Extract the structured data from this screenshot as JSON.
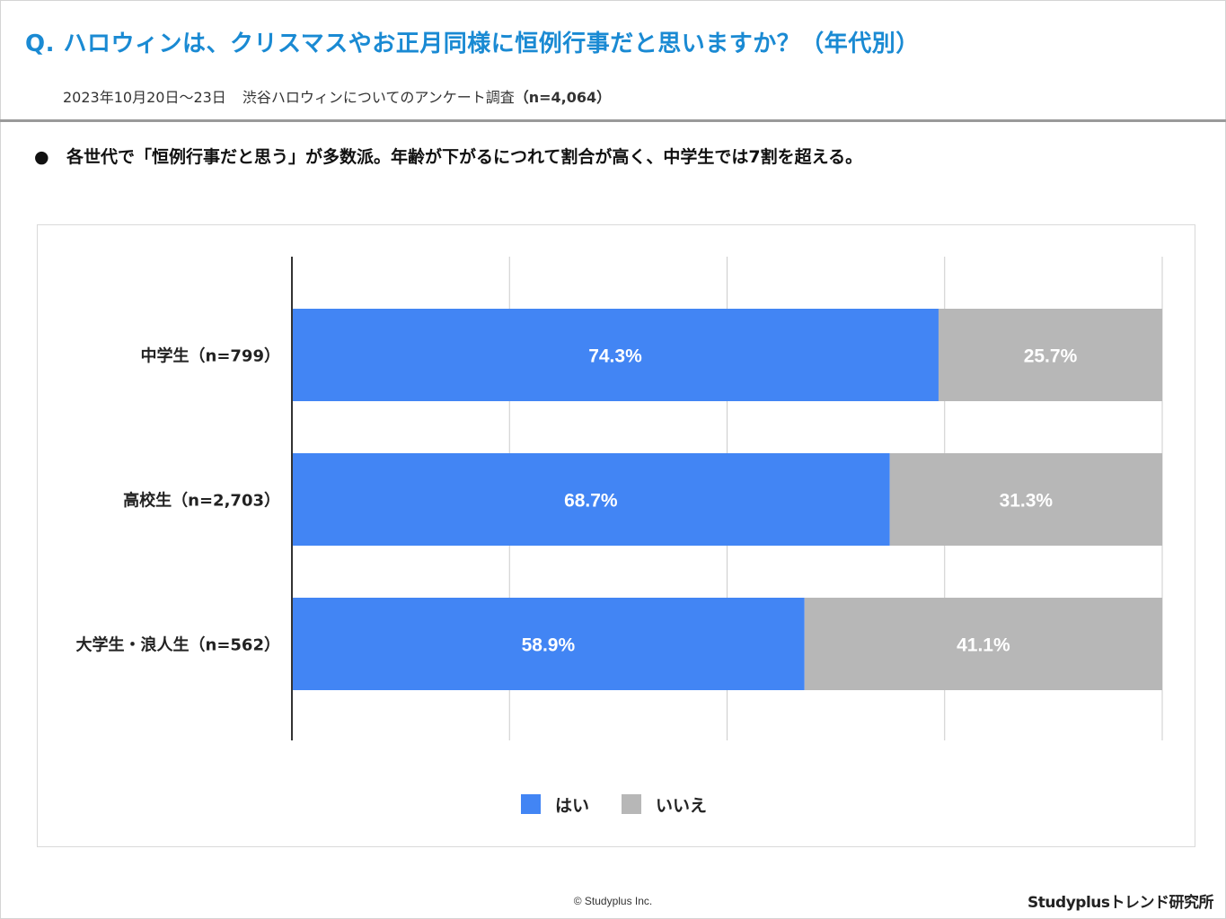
{
  "header": {
    "question": "Q. ハロウィンは、クリスマスやお正月同様に恒例行事だと思いますか？（年代別）",
    "date": "2023年10月20日〜23日",
    "survey": "渋谷ハロウィンについてのアンケート調査",
    "sample": "（n=4,064）"
  },
  "summary": {
    "bullet": "●",
    "text": "各世代で「恒例行事だと思う」が多数派。年齢が下がるにつれて割合が高く、中学生では7割を超える。"
  },
  "chart_data": {
    "type": "bar",
    "orientation": "horizontal",
    "stacked": true,
    "normalized": true,
    "categories": [
      "中学生（n=799）",
      "高校生（n=2,703）",
      "大学生・浪人生（n=562）"
    ],
    "series": [
      {
        "name": "はい",
        "values": [
          74.3,
          68.7,
          58.9
        ],
        "color": "#4285f4",
        "labels": [
          "74.3%",
          "68.7%",
          "58.9%"
        ]
      },
      {
        "name": "いいえ",
        "values": [
          25.7,
          31.3,
          41.1
        ],
        "color": "#b7b7b7",
        "labels": [
          "25.7%",
          "31.3%",
          "41.1%"
        ]
      }
    ],
    "xlim": [
      0,
      100
    ],
    "grid": true,
    "legend": "bottom-center",
    "title": "",
    "xlabel": "",
    "ylabel": ""
  },
  "footer": {
    "copyright": "© Studyplus Inc.",
    "brand": "Studyplusトレンド研究所"
  }
}
